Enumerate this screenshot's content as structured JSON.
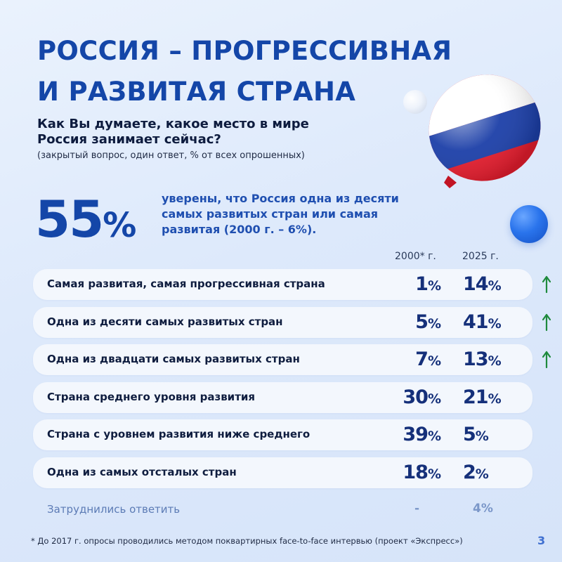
{
  "title": {
    "line1": "РОССИЯ – ПРОГРЕССИВНАЯ",
    "line2": "И РАЗВИТАЯ СТРАНА"
  },
  "question": {
    "line1": "Как Вы думаете, какое место в мире",
    "line2": "Россия занимает сейчас?",
    "note": "(закрытый вопрос, один ответ, % от всех опрошенных)"
  },
  "highlight": {
    "number": "55",
    "percent_sign": "%",
    "line1": "уверены, что Россия одна из десяти",
    "line2": "самых развитых стран или самая",
    "line3": "развитая (2000 г. – 6%)."
  },
  "columns": {
    "col1": "2000* г.",
    "col2": "2025 г."
  },
  "rows": [
    {
      "label": "Самая развитая, самая прогрессивная страна",
      "v2000": "1",
      "v2025": "14",
      "up": true
    },
    {
      "label": "Одна из десяти самых развитых стран",
      "v2000": "5",
      "v2025": "41",
      "up": true
    },
    {
      "label": "Одна из двадцати самых развитых стран",
      "v2000": "7",
      "v2025": "13",
      "up": true
    },
    {
      "label": "Страна среднего уровня развития",
      "v2000": "30",
      "v2025": "21",
      "up": false
    },
    {
      "label": "Страна с уровнем развития ниже среднего",
      "v2000": "39",
      "v2025": "5",
      "up": false
    },
    {
      "label": "Одна из самых отсталых стран",
      "v2000": "18",
      "v2025": "2",
      "up": false
    }
  ],
  "percent_sign": "%",
  "dont_know": {
    "label": "Затруднились ответить",
    "v2000": "-",
    "v2025": "4%"
  },
  "footnote": "* До 2017 г. опросы проводились методом поквартирных face-to-face интервью (проект «Экспресс»)",
  "page_number": "3",
  "colors": {
    "title": "#1446a8",
    "arrow_up": "#1e8a3c",
    "row_bg": "#f3f7fd"
  },
  "icons": [
    "russian-flag-balloon",
    "white-bubble",
    "blue-bubble",
    "arrow-up-icon"
  ]
}
